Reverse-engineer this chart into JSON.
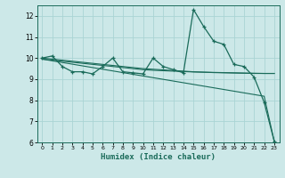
{
  "title": "",
  "xlabel": "Humidex (Indice chaleur)",
  "ylabel": "",
  "bg_color": "#cce8e8",
  "line_color": "#1a6b5a",
  "grid_color": "#aad4d4",
  "x_data": [
    0,
    1,
    2,
    3,
    4,
    5,
    6,
    7,
    8,
    9,
    10,
    11,
    12,
    13,
    14,
    15,
    16,
    17,
    18,
    19,
    20,
    21,
    22,
    23
  ],
  "main_y": [
    10.0,
    10.1,
    9.6,
    9.35,
    9.35,
    9.25,
    9.6,
    10.0,
    9.35,
    9.3,
    9.25,
    10.0,
    9.6,
    9.45,
    9.3,
    12.3,
    11.5,
    10.8,
    10.65,
    9.7,
    9.6,
    9.1,
    7.9,
    6.05
  ],
  "reg1_y": [
    9.95,
    9.9,
    9.85,
    9.8,
    9.75,
    9.7,
    9.65,
    9.6,
    9.55,
    9.5,
    9.45,
    9.42,
    9.4,
    9.38,
    9.36,
    9.34,
    9.33,
    9.32,
    9.31,
    9.3,
    9.29,
    9.28,
    9.27,
    9.27
  ],
  "reg2_y": [
    9.95,
    9.87,
    9.79,
    9.71,
    9.63,
    9.55,
    9.47,
    9.39,
    9.31,
    9.23,
    9.15,
    9.07,
    8.99,
    8.91,
    8.83,
    8.75,
    8.67,
    8.59,
    8.51,
    8.43,
    8.35,
    8.27,
    8.19,
    6.05
  ],
  "reg3_y": [
    10.0,
    9.95,
    9.9,
    9.85,
    9.8,
    9.75,
    9.7,
    9.65,
    9.6,
    9.55,
    9.5,
    9.47,
    9.44,
    9.41,
    9.38,
    9.35,
    9.33,
    9.31,
    9.3,
    9.29,
    9.28,
    9.27,
    9.27,
    9.27
  ],
  "ylim": [
    6,
    12.5
  ],
  "xlim": [
    -0.5,
    23.5
  ],
  "yticks": [
    6,
    7,
    8,
    9,
    10,
    11,
    12
  ],
  "xticks": [
    0,
    1,
    2,
    3,
    4,
    5,
    6,
    7,
    8,
    9,
    10,
    11,
    12,
    13,
    14,
    15,
    16,
    17,
    18,
    19,
    20,
    21,
    22,
    23
  ]
}
